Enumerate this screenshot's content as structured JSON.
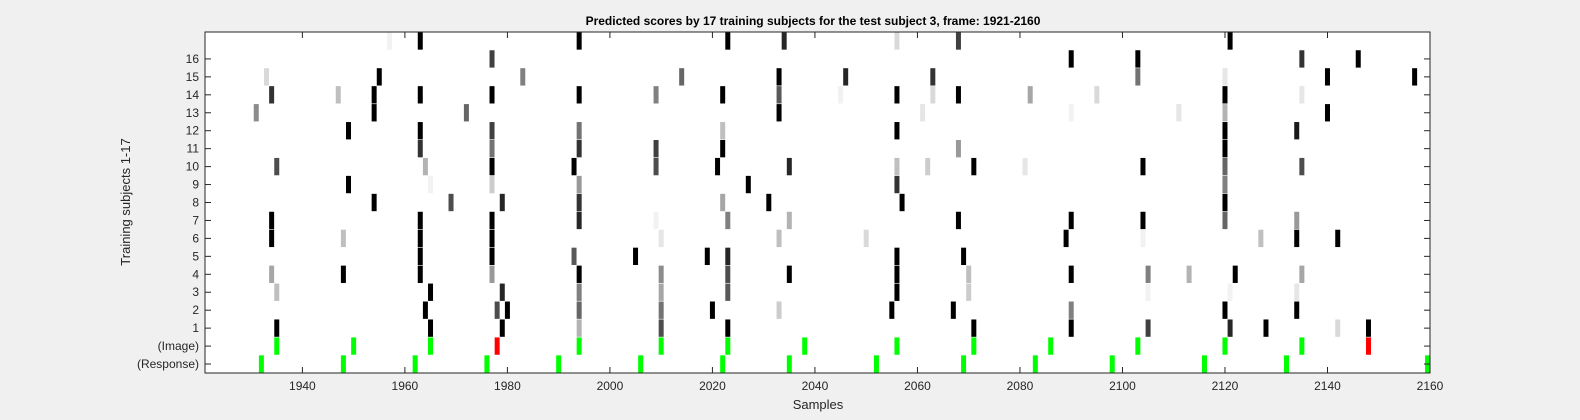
{
  "chart_data": {
    "type": "heatmap",
    "title": "Predicted scores by 17 training subjects for the test subject 3, frame: 1921-2160",
    "xlabel": "Samples",
    "ylabel": "Training subjects 1-17",
    "xlim": [
      1921,
      2160
    ],
    "x_ticks": [
      1940,
      1960,
      1980,
      2000,
      2020,
      2040,
      2060,
      2080,
      2100,
      2120,
      2140,
      2160
    ],
    "rows": [
      "(Response)",
      "(Image)",
      "1",
      "2",
      "3",
      "4",
      "5",
      "6",
      "7",
      "8",
      "9",
      "10",
      "11",
      "12",
      "13",
      "14",
      "15",
      "16",
      "17"
    ],
    "row_tick_labels": [
      "(Response)",
      "(Image)",
      "1",
      "2",
      "3",
      "4",
      "5",
      "6",
      "7",
      "8",
      "9",
      "10",
      "11",
      "12",
      "13",
      "14",
      "15",
      "16"
    ],
    "colormap": "gray (white = 0, black = 1)",
    "response_color": "#00ff00",
    "highlight_color": "#ff0000",
    "response_events": [
      1932,
      1948,
      1962,
      1976,
      1990,
      2006,
      2022,
      2035,
      2052,
      2069,
      2083,
      2098,
      2116,
      2132,
      2160
    ],
    "image_events": [
      {
        "x": 1935,
        "v": 1
      },
      {
        "x": 1950,
        "v": 1
      },
      {
        "x": 1965,
        "v": 1
      },
      {
        "x": 1978,
        "v": 1,
        "highlight": true
      },
      {
        "x": 1994,
        "v": 1
      },
      {
        "x": 2010,
        "v": 1
      },
      {
        "x": 2023,
        "v": 1
      },
      {
        "x": 2038,
        "v": 1
      },
      {
        "x": 2056,
        "v": 1
      },
      {
        "x": 2071,
        "v": 1
      },
      {
        "x": 2086,
        "v": 1
      },
      {
        "x": 2103,
        "v": 1
      },
      {
        "x": 2120,
        "v": 1
      },
      {
        "x": 2135,
        "v": 1
      },
      {
        "x": 2148,
        "v": 1,
        "highlight": true
      }
    ],
    "subject_scores": {
      "1": [
        [
          1935,
          1.0
        ],
        [
          1965,
          1.0
        ],
        [
          1979,
          1.0
        ],
        [
          1994,
          0.3
        ],
        [
          2010,
          0.7
        ],
        [
          2023,
          1.0
        ],
        [
          2071,
          1.0
        ],
        [
          2090,
          1.0
        ],
        [
          2105,
          0.75
        ],
        [
          2121,
          0.85
        ],
        [
          2128,
          1.0
        ],
        [
          2142,
          0.15
        ],
        [
          2148,
          1.0
        ]
      ],
      "2": [
        [
          1964,
          1.0
        ],
        [
          1978,
          0.7
        ],
        [
          1980,
          1.0
        ],
        [
          1994,
          0.6
        ],
        [
          2010,
          0.55
        ],
        [
          2020,
          1.0
        ],
        [
          2033,
          0.2
        ],
        [
          2055,
          1.0
        ],
        [
          2067,
          1.0
        ],
        [
          2090,
          0.5
        ],
        [
          2120,
          1.0
        ],
        [
          2134,
          1.0
        ]
      ],
      "3": [
        [
          1935,
          0.25
        ],
        [
          1965,
          1.0
        ],
        [
          1979,
          0.85
        ],
        [
          1994,
          0.5
        ],
        [
          2010,
          0.35
        ],
        [
          2023,
          0.65
        ],
        [
          2056,
          1.0
        ],
        [
          2070,
          0.2
        ],
        [
          2105,
          0.05
        ],
        [
          2121,
          0.05
        ],
        [
          2134,
          0.1
        ]
      ],
      "4": [
        [
          1934,
          0.35
        ],
        [
          1948,
          1.0
        ],
        [
          1963,
          1.0
        ],
        [
          1977,
          0.4
        ],
        [
          1994,
          1.0
        ],
        [
          2010,
          0.45
        ],
        [
          2023,
          0.7
        ],
        [
          2035,
          1.0
        ],
        [
          2056,
          1.0
        ],
        [
          2070,
          0.25
        ],
        [
          2090,
          1.0
        ],
        [
          2105,
          0.5
        ],
        [
          2113,
          0.3
        ],
        [
          2122,
          1.0
        ],
        [
          2135,
          0.35
        ]
      ],
      "5": [
        [
          1963,
          1.0
        ],
        [
          1977,
          1.0
        ],
        [
          1993,
          0.65
        ],
        [
          2005,
          1.0
        ],
        [
          2019,
          1.0
        ],
        [
          2023,
          0.85
        ],
        [
          2056,
          1.0
        ],
        [
          2069,
          1.0
        ]
      ],
      "6": [
        [
          1934,
          1.0
        ],
        [
          1948,
          0.25
        ],
        [
          1963,
          1.0
        ],
        [
          1977,
          1.0
        ],
        [
          2010,
          0.1
        ],
        [
          2033,
          0.25
        ],
        [
          2050,
          0.15
        ],
        [
          2089,
          1.0
        ],
        [
          2104,
          0.05
        ],
        [
          2127,
          0.25
        ],
        [
          2134,
          1.0
        ],
        [
          2142,
          1.0
        ]
      ],
      "7": [
        [
          1934,
          1.0
        ],
        [
          1963,
          1.0
        ],
        [
          1977,
          1.0
        ],
        [
          1994,
          0.85
        ],
        [
          2009,
          0.05
        ],
        [
          2023,
          0.5
        ],
        [
          2035,
          0.3
        ],
        [
          2068,
          1.0
        ],
        [
          2090,
          1.0
        ],
        [
          2104,
          1.0
        ],
        [
          2120,
          0.6
        ],
        [
          2134,
          0.4
        ]
      ],
      "8": [
        [
          1954,
          1.0
        ],
        [
          1969,
          0.7
        ],
        [
          1979,
          0.85
        ],
        [
          1994,
          0.8
        ],
        [
          2022,
          0.35
        ],
        [
          2031,
          1.0
        ],
        [
          2057,
          1.0
        ],
        [
          2120,
          1.0
        ]
      ],
      "9": [
        [
          1949,
          1.0
        ],
        [
          1965,
          0.05
        ],
        [
          1977,
          0.2
        ],
        [
          1994,
          0.4
        ],
        [
          2027,
          1.0
        ],
        [
          2056,
          0.8
        ],
        [
          2120,
          0.5
        ]
      ],
      "10": [
        [
          1935,
          0.7
        ],
        [
          1964,
          0.3
        ],
        [
          1977,
          1.0
        ],
        [
          1993,
          1.0
        ],
        [
          2009,
          0.7
        ],
        [
          2021,
          1.0
        ],
        [
          2035,
          0.85
        ],
        [
          2056,
          0.25
        ],
        [
          2062,
          0.2
        ],
        [
          2071,
          1.0
        ],
        [
          2081,
          0.1
        ],
        [
          2104,
          1.0
        ],
        [
          2120,
          0.6
        ],
        [
          2135,
          0.7
        ]
      ],
      "11": [
        [
          1963,
          0.8
        ],
        [
          1977,
          0.55
        ],
        [
          1994,
          0.8
        ],
        [
          2009,
          0.75
        ],
        [
          2022,
          1.0
        ],
        [
          2068,
          0.4
        ],
        [
          2120,
          1.0
        ]
      ],
      "12": [
        [
          1949,
          1.0
        ],
        [
          1963,
          1.0
        ],
        [
          1977,
          0.75
        ],
        [
          1994,
          0.55
        ],
        [
          2022,
          0.25
        ],
        [
          2056,
          1.0
        ],
        [
          2120,
          1.0
        ],
        [
          2134,
          0.9
        ]
      ],
      "13": [
        [
          1931,
          0.45
        ],
        [
          1954,
          1.0
        ],
        [
          1972,
          0.6
        ],
        [
          2033,
          1.0
        ],
        [
          2061,
          0.1
        ],
        [
          2090,
          0.05
        ],
        [
          2111,
          0.1
        ],
        [
          2120,
          0.3
        ],
        [
          2140,
          1.0
        ]
      ],
      "14": [
        [
          1934,
          0.8
        ],
        [
          1947,
          0.25
        ],
        [
          1954,
          1.0
        ],
        [
          1963,
          1.0
        ],
        [
          1977,
          1.0
        ],
        [
          1994,
          1.0
        ],
        [
          2009,
          0.5
        ],
        [
          2022,
          1.0
        ],
        [
          2033,
          0.65
        ],
        [
          2045,
          0.05
        ],
        [
          2056,
          1.0
        ],
        [
          2063,
          0.15
        ],
        [
          2068,
          1.0
        ],
        [
          2082,
          0.35
        ],
        [
          2095,
          0.15
        ],
        [
          2120,
          1.0
        ],
        [
          2135,
          0.1
        ]
      ],
      "15": [
        [
          1933,
          0.15
        ],
        [
          1955,
          1.0
        ],
        [
          1983,
          0.5
        ],
        [
          2014,
          0.6
        ],
        [
          2033,
          1.0
        ],
        [
          2046,
          0.85
        ],
        [
          2063,
          0.8
        ],
        [
          2103,
          0.55
        ],
        [
          2120,
          0.1
        ],
        [
          2140,
          1.0
        ],
        [
          2157,
          1.0
        ]
      ],
      "16": [
        [
          1977,
          0.75
        ],
        [
          2090,
          1.0
        ],
        [
          2103,
          1.0
        ],
        [
          2135,
          0.8
        ],
        [
          2146,
          1.0
        ]
      ],
      "17": [
        [
          1957,
          0.05
        ],
        [
          1963,
          1.0
        ],
        [
          1994,
          1.0
        ],
        [
          2023,
          1.0
        ],
        [
          2034,
          0.85
        ],
        [
          2056,
          0.15
        ],
        [
          2068,
          0.75
        ],
        [
          2121,
          1.0
        ]
      ]
    }
  }
}
